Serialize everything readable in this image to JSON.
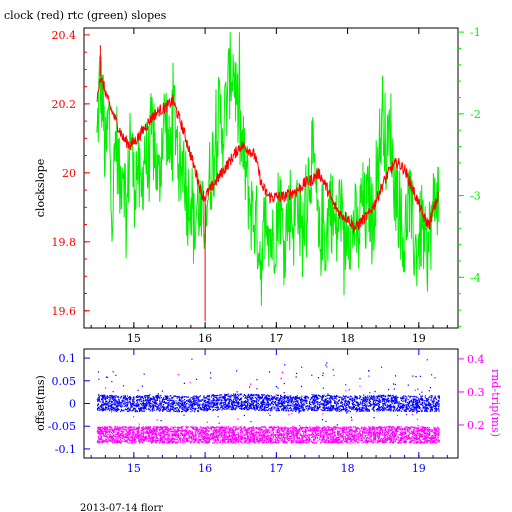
{
  "title": "clock (red) rtc (green) slopes",
  "footer": "2013-07-14 florr",
  "colors": {
    "clock": "#ff0000",
    "rtc": "#00ee00",
    "offset": "#0000ff",
    "rnd_trip": "#ff00ff",
    "axis": "#000000"
  },
  "chart_data": [
    {
      "type": "line",
      "title": "clock (red) rtc (green) slopes",
      "xlabel": "",
      "ylabel": "clockslope",
      "y2label": "",
      "xlim": [
        14.3,
        19.55
      ],
      "ylim": [
        19.55,
        20.42
      ],
      "y2lim": [
        -4.62,
        -0.95
      ],
      "x_ticks": [
        "15",
        "16",
        "17",
        "18",
        "19"
      ],
      "y_ticks": [
        "19.6",
        "19.8",
        "20",
        "20.2",
        "20.4"
      ],
      "y2_ticks": [
        "-1",
        "-2",
        "-3",
        "-4"
      ],
      "grid": false,
      "series": [
        {
          "name": "clock",
          "axis": "left",
          "x": [
            14.48,
            14.52,
            14.58,
            14.65,
            14.75,
            14.85,
            14.95,
            15.05,
            15.15,
            15.25,
            15.35,
            15.45,
            15.55,
            15.6,
            15.7,
            15.8,
            15.9,
            15.95,
            16.0,
            16.1,
            16.2,
            16.3,
            16.4,
            16.5,
            16.6,
            16.7,
            16.8,
            16.9,
            17.0,
            17.1,
            17.2,
            17.3,
            17.4,
            17.5,
            17.6,
            17.7,
            17.8,
            17.9,
            18.0,
            18.1,
            18.2,
            18.3,
            18.4,
            18.5,
            18.6,
            18.7,
            18.8,
            18.9,
            19.0,
            19.05,
            19.1,
            19.15,
            19.2,
            19.27
          ],
          "y": [
            20.2,
            20.28,
            20.25,
            20.2,
            20.15,
            20.1,
            20.08,
            20.1,
            20.13,
            20.16,
            20.18,
            20.19,
            20.21,
            20.18,
            20.12,
            20.05,
            19.98,
            19.94,
            19.93,
            19.96,
            19.99,
            20.02,
            20.05,
            20.08,
            20.07,
            20.05,
            19.96,
            19.93,
            19.93,
            19.93,
            19.94,
            19.95,
            19.97,
            19.98,
            20.0,
            19.96,
            19.91,
            19.88,
            19.87,
            19.84,
            19.86,
            19.88,
            19.92,
            19.97,
            20.01,
            20.03,
            20.01,
            19.96,
            19.91,
            19.88,
            19.86,
            19.85,
            19.89,
            19.93
          ]
        },
        {
          "name": "rtc",
          "axis": "right",
          "x": [
            14.48,
            14.52,
            14.56,
            14.6,
            14.65,
            14.7,
            14.75,
            14.8,
            14.85,
            14.9,
            14.95,
            15.0,
            15.05,
            15.1,
            15.15,
            15.2,
            15.25,
            15.3,
            15.35,
            15.4,
            15.45,
            15.5,
            15.55,
            15.6,
            15.65,
            15.7,
            15.75,
            15.8,
            15.85,
            15.9,
            15.95,
            16.0,
            16.05,
            16.1,
            16.15,
            16.2,
            16.25,
            16.3,
            16.35,
            16.4,
            16.45,
            16.5,
            16.55,
            16.6,
            16.65,
            16.7,
            16.75,
            16.8,
            16.85,
            16.9,
            16.95,
            17.0,
            17.05,
            17.1,
            17.15,
            17.2,
            17.25,
            17.3,
            17.35,
            17.4,
            17.45,
            17.5,
            17.55,
            17.6,
            17.65,
            17.7,
            17.75,
            17.8,
            17.85,
            17.9,
            17.95,
            18.0,
            18.05,
            18.1,
            18.15,
            18.2,
            18.25,
            18.3,
            18.35,
            18.4,
            18.45,
            18.5,
            18.55,
            18.6,
            18.65,
            18.7,
            18.75,
            18.8,
            18.85,
            18.9,
            18.95,
            19.0,
            19.05,
            19.1,
            19.15,
            19.2,
            19.25,
            19.28
          ],
          "y": [
            -2.4,
            -1.6,
            -1.8,
            -2.6,
            -2.0,
            -3.2,
            -2.2,
            -2.9,
            -2.5,
            -3.3,
            -2.1,
            -2.9,
            -2.6,
            -3.1,
            -2.4,
            -2.7,
            -2.2,
            -2.5,
            -2.9,
            -2.2,
            -2.0,
            -2.6,
            -1.9,
            -2.2,
            -2.8,
            -2.5,
            -3.1,
            -2.9,
            -3.5,
            -3.0,
            -3.4,
            -3.2,
            -2.9,
            -2.6,
            -2.3,
            -2.0,
            -2.2,
            -1.9,
            -1.5,
            -1.4,
            -1.9,
            -2.3,
            -2.6,
            -2.9,
            -3.2,
            -3.3,
            -3.5,
            -3.9,
            -3.0,
            -3.4,
            -3.6,
            -3.3,
            -3.0,
            -3.6,
            -3.3,
            -3.1,
            -3.4,
            -2.9,
            -3.6,
            -3.2,
            -2.8,
            -2.5,
            -2.9,
            -3.7,
            -3.3,
            -3.6,
            -3.0,
            -3.3,
            -3.5,
            -3.0,
            -3.8,
            -3.2,
            -3.5,
            -3.3,
            -3.6,
            -3.0,
            -3.3,
            -3.0,
            -3.4,
            -2.8,
            -2.4,
            -1.9,
            -2.6,
            -2.1,
            -2.8,
            -3.0,
            -3.3,
            -3.6,
            -3.0,
            -3.3,
            -3.7,
            -3.6,
            -3.3,
            -3.8,
            -3.5,
            -3.2,
            -2.9,
            -3.1
          ]
        }
      ]
    },
    {
      "type": "scatter",
      "xlabel": "",
      "ylabel": "offset(ms)",
      "y2label": "rnd-trip(ms)",
      "xlim": [
        14.3,
        19.55
      ],
      "ylim": [
        -0.12,
        0.12
      ],
      "y2lim": [
        0.1,
        0.43
      ],
      "x_ticks": [
        "15",
        "16",
        "17",
        "18",
        "19"
      ],
      "y_ticks": [
        "0.1",
        "0.05",
        "0",
        "-0.05",
        "-0.1"
      ],
      "y2_ticks": [
        "0.4",
        "0.3",
        "0.2"
      ],
      "grid": false,
      "series": [
        {
          "name": "offset",
          "axis": "left",
          "x": [
            14.5,
            14.75,
            15.0,
            15.25,
            15.5,
            15.75,
            16.0,
            16.25,
            16.5,
            16.75,
            17.0,
            17.25,
            17.5,
            17.75,
            18.0,
            18.25,
            18.5,
            18.75,
            19.0,
            19.25
          ],
          "y": [
            0.002,
            0.0,
            -0.001,
            0.001,
            0.0,
            -0.002,
            0.001,
            0.003,
            0.004,
            0.002,
            0.001,
            0.0,
            0.002,
            0.001,
            -0.001,
            0.0,
            0.001,
            0.0,
            -0.001,
            0.0
          ]
        },
        {
          "name": "rnd-trip",
          "axis": "right",
          "x": [
            14.5,
            14.75,
            15.0,
            15.25,
            15.5,
            15.75,
            16.0,
            16.25,
            16.5,
            16.75,
            17.0,
            17.25,
            17.5,
            17.75,
            18.0,
            18.25,
            18.5,
            18.75,
            19.0,
            19.25
          ],
          "y": [
            0.17,
            0.17,
            0.17,
            0.17,
            0.17,
            0.17,
            0.17,
            0.17,
            0.17,
            0.17,
            0.17,
            0.17,
            0.17,
            0.17,
            0.17,
            0.17,
            0.17,
            0.17,
            0.17,
            0.17
          ]
        }
      ]
    }
  ]
}
